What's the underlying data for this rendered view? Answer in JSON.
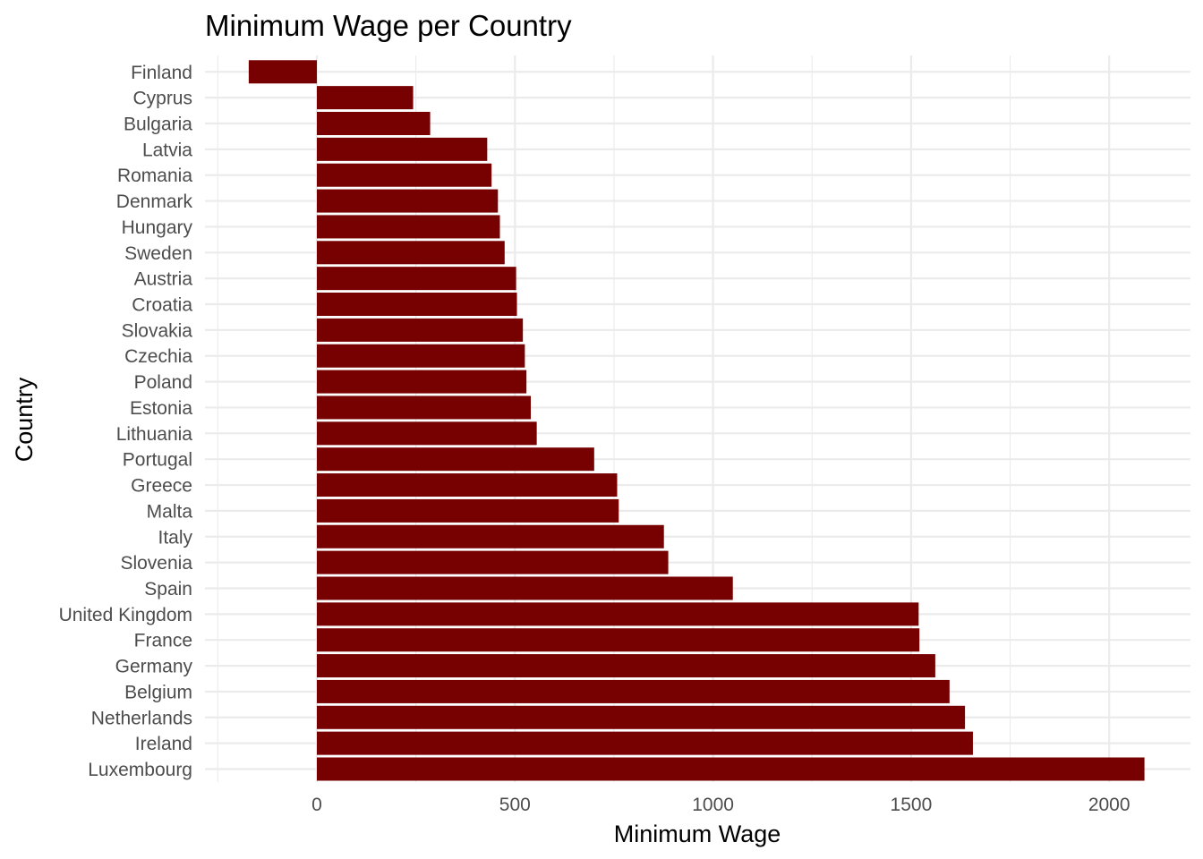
{
  "chart_data": {
    "type": "bar",
    "orientation": "horizontal",
    "title": "Minimum Wage per Country",
    "xlabel": "Minimum Wage",
    "ylabel": "Country",
    "xlim": [
      -250,
      2100
    ],
    "xticks": [
      0,
      500,
      1000,
      1500,
      2000
    ],
    "xtick_labels": [
      "0",
      "500",
      "1000",
      "1500",
      "2000"
    ],
    "x_minor_ticks": [
      -250,
      250,
      750,
      1250,
      1750
    ],
    "grid": true,
    "bar_color": "#770000",
    "categories": [
      "Luxembourg",
      "Ireland",
      "Netherlands",
      "Belgium",
      "Germany",
      "France",
      "United Kingdom",
      "Spain",
      "Slovenia",
      "Italy",
      "Malta",
      "Greece",
      "Portugal",
      "Lithuania",
      "Estonia",
      "Poland",
      "Czechia",
      "Slovakia",
      "Croatia",
      "Austria",
      "Sweden",
      "Hungary",
      "Denmark",
      "Romania",
      "Latvia",
      "Bulgaria",
      "Cyprus",
      "Finland"
    ],
    "values": [
      2089,
      1656,
      1636,
      1597,
      1561,
      1521,
      1519,
      1050,
      887,
      876,
      762,
      758,
      700,
      555,
      540,
      529,
      525,
      520,
      505,
      503,
      474,
      462,
      457,
      441,
      430,
      286,
      243,
      -172
    ]
  }
}
